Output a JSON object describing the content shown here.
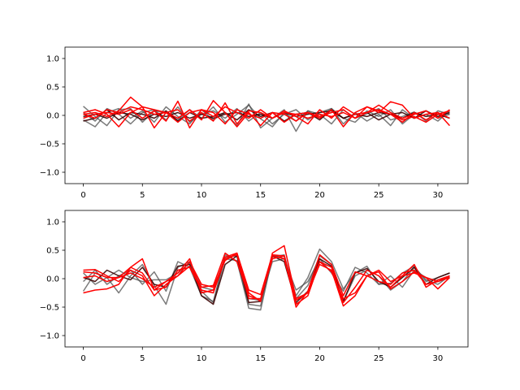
{
  "colors": {
    "gray": "#4d4d4d",
    "red": "#ff0000",
    "dark": "#3a0000",
    "axes": "#000000"
  },
  "chart_data": [
    {
      "type": "line",
      "xlim": [
        -1.55,
        32.55
      ],
      "ylim": [
        -1.2,
        1.2
      ],
      "xticks": [
        0,
        5,
        10,
        15,
        20,
        25,
        30
      ],
      "yticks": [
        -1.0,
        -0.5,
        0.0,
        0.5,
        1.0
      ],
      "ytick_labels": [
        "−1.0",
        "−0.5",
        "0.0",
        "0.5",
        "1.0"
      ],
      "grid": false,
      "series": [
        {
          "color": "gray",
          "values": [
            0.16,
            -0.02,
            -0.18,
            0.1,
            0.12,
            -0.12,
            0.08,
            0.05,
            -0.08,
            0.1,
            -0.05,
            0.15,
            -0.12,
            0.02,
            0.18,
            -0.06,
            -0.2,
            0.05,
            -0.1,
            0.08,
            0.02,
            -0.15,
            0.1,
            -0.05,
            0.03,
            0.12,
            -0.08,
            -0.02,
            0.06,
            -0.1,
            0.08,
            0.02
          ]
        },
        {
          "color": "gray",
          "values": [
            -0.08,
            -0.2,
            0.05,
            0.12,
            -0.05,
            0.08,
            -0.12,
            0.15,
            -0.02,
            -0.15,
            0.1,
            -0.08,
            0.05,
            -0.18,
            0.2,
            -0.22,
            -0.05,
            0.1,
            -0.28,
            0.08,
            -0.05,
            0.12,
            -0.15,
            0.05,
            -0.1,
            0.02,
            -0.18,
            0.1,
            -0.05,
            0.02,
            -0.1,
            0.08
          ]
        },
        {
          "color": "gray",
          "values": [
            0.05,
            -0.1,
            0.12,
            0.02,
            -0.15,
            0.05,
            0.1,
            -0.08,
            0.15,
            -0.12,
            0.02,
            0.08,
            -0.05,
            0.12,
            -0.1,
            0.05,
            -0.15,
            0.02,
            0.1,
            -0.08,
            0.05,
            0.12,
            -0.05,
            -0.12,
            0.08,
            -0.02,
            0.1,
            -0.15,
            0.02,
            0.08,
            -0.05,
            0.02
          ]
        },
        {
          "color": "dark",
          "values": [
            -0.02,
            0.02,
            -0.05,
            0.05,
            0.02,
            -0.08,
            0.02,
            -0.02,
            0.05,
            -0.05,
            0.02,
            -0.05,
            0.02,
            0.05,
            -0.02,
            0.02,
            -0.05,
            0.05,
            -0.02,
            0.02,
            0.05,
            0.08,
            -0.05,
            0.02,
            -0.02,
            0.05,
            0.02,
            -0.05,
            0.05,
            -0.02,
            0.02,
            -0.05
          ]
        },
        {
          "color": "dark",
          "values": [
            -0.1,
            -0.05,
            0.1,
            -0.08,
            0.05,
            0.02,
            -0.05,
            0.08,
            -0.1,
            0.05,
            -0.05,
            -0.02,
            0.05,
            -0.08,
            0.1,
            -0.02,
            0.05,
            -0.1,
            0.02,
            0.05,
            -0.08,
            0.1,
            -0.05,
            0.02,
            0.05,
            -0.08,
            0.02,
            0.05,
            -0.05,
            0.08,
            -0.02,
            0.05
          ]
        },
        {
          "color": "red",
          "values": [
            0.05,
            0.1,
            0.02,
            -0.2,
            0.05,
            0.15,
            0.1,
            0.05,
            -0.05,
            0.1,
            -0.08,
            0.26,
            0.05,
            -0.2,
            0.05,
            -0.18,
            0.05,
            0.02,
            -0.1,
            0.05,
            -0.05,
            0.1,
            -0.2,
            0.05,
            0.15,
            0.05,
            0.24,
            0.18,
            -0.05,
            0.02,
            0.05,
            -0.18
          ]
        },
        {
          "color": "red",
          "values": [
            0.02,
            0.05,
            -0.02,
            0.08,
            0.32,
            0.15,
            -0.22,
            0.05,
            0.1,
            -0.1,
            0.05,
            -0.1,
            0.22,
            -0.15,
            0.08,
            0.05,
            -0.05,
            0.08,
            -0.02,
            -0.15,
            0.1,
            -0.05,
            0.15,
            0.02,
            0.05,
            0.18,
            0.05,
            -0.05,
            0.02,
            0.08,
            -0.05,
            0.1
          ]
        },
        {
          "color": "red",
          "values": [
            -0.05,
            0.02,
            0.05,
            0.02,
            0.1,
            -0.05,
            0.08,
            -0.1,
            0.25,
            -0.22,
            0.1,
            0.05,
            -0.15,
            0.1,
            0.02,
            -0.05,
            0.05,
            -0.12,
            0.02,
            0.05,
            -0.02,
            0.05,
            0.1,
            -0.05,
            0.05,
            0.1,
            0.02,
            -0.12,
            0.05,
            -0.08,
            0.05,
            -0.05
          ]
        },
        {
          "color": "red",
          "values": [
            0.02,
            -0.05,
            0.1,
            0.05,
            0.15,
            0.1,
            0.02,
            0.05,
            -0.12,
            0.05,
            0.1,
            -0.02,
            0.15,
            0.05,
            -0.05,
            0.1,
            -0.05,
            0.05,
            0.02,
            -0.05,
            0.02,
            -0.02,
            0.05,
            -0.05,
            0.15,
            0.08,
            0.02,
            -0.08,
            -0.02,
            -0.12,
            0.02,
            0.08
          ]
        }
      ]
    },
    {
      "type": "line",
      "xlim": [
        -1.55,
        32.55
      ],
      "ylim": [
        -1.2,
        1.2
      ],
      "xticks": [
        0,
        5,
        10,
        15,
        20,
        25,
        30
      ],
      "yticks": [
        -1.0,
        -0.5,
        0.0,
        0.5,
        1.0
      ],
      "ytick_labels": [
        "−1.0",
        "−0.5",
        "0.0",
        "0.5",
        "1.0"
      ],
      "grid": false,
      "series": [
        {
          "color": "gray",
          "values": [
            -0.22,
            0.1,
            0.02,
            -0.25,
            0.05,
            0.25,
            -0.12,
            -0.45,
            0.2,
            0.3,
            -0.22,
            -0.42,
            0.42,
            0.3,
            -0.45,
            -0.48,
            0.42,
            0.35,
            -0.3,
            0.02,
            0.52,
            0.3,
            -0.18,
            0.1,
            0.22,
            -0.1,
            -0.08,
            0.1,
            0.22,
            -0.05,
            0.02,
            0.1
          ]
        },
        {
          "color": "gray",
          "values": [
            -0.05,
            0.15,
            -0.1,
            0.05,
            0.15,
            -0.1,
            0.12,
            -0.22,
            0.3,
            0.2,
            -0.3,
            -0.4,
            0.35,
            0.32,
            -0.52,
            -0.55,
            0.38,
            0.42,
            -0.35,
            -0.12,
            0.4,
            0.25,
            -0.4,
            0.05,
            0.15,
            0.05,
            -0.2,
            -0.05,
            0.2,
            -0.02,
            -0.1,
            0.05
          ]
        },
        {
          "color": "gray",
          "values": [
            0.1,
            -0.1,
            0.02,
            0.15,
            0.02,
            -0.05,
            -0.02,
            -0.02,
            0.1,
            0.28,
            -0.15,
            -0.2,
            0.38,
            0.4,
            -0.35,
            -0.38,
            0.3,
            0.35,
            -0.2,
            -0.05,
            0.35,
            0.1,
            -0.22,
            0.2,
            0.1,
            -0.1,
            0.05,
            -0.15,
            0.15,
            0.02,
            -0.05,
            0.02
          ]
        },
        {
          "color": "dark",
          "values": [
            0.02,
            -0.05,
            0.15,
            0.05,
            -0.02,
            0.2,
            -0.1,
            -0.15,
            0.22,
            0.25,
            -0.3,
            -0.45,
            0.25,
            0.4,
            -0.42,
            -0.4,
            0.4,
            0.3,
            -0.42,
            -0.22,
            0.35,
            0.22,
            -0.4,
            0.1,
            0.18,
            -0.05,
            -0.15,
            0.02,
            0.2,
            -0.1,
            0.02,
            0.1
          ]
        },
        {
          "color": "red",
          "values": [
            0.15,
            0.16,
            0.05,
            -0.05,
            0.15,
            0.05,
            -0.3,
            -0.1,
            0.05,
            0.22,
            -0.15,
            -0.12,
            0.45,
            0.3,
            -0.3,
            -0.38,
            0.4,
            0.35,
            -0.45,
            -0.3,
            0.3,
            0.2,
            -0.42,
            -0.15,
            0.15,
            0.05,
            -0.15,
            0.05,
            0.25,
            -0.15,
            -0.02,
            0.05
          ]
        },
        {
          "color": "red",
          "values": [
            -0.25,
            -0.2,
            -0.18,
            -0.1,
            0.2,
            0.35,
            -0.2,
            -0.05,
            0.1,
            0.35,
            -0.25,
            -0.2,
            0.38,
            0.45,
            -0.25,
            -0.4,
            0.45,
            0.58,
            -0.35,
            -0.25,
            0.3,
            0.12,
            -0.35,
            -0.25,
            0.05,
            0.12,
            -0.18,
            -0.05,
            0.12,
            0.02,
            -0.18,
            0.02
          ]
        },
        {
          "color": "red",
          "values": [
            0.12,
            0.1,
            0.02,
            0.02,
            0.1,
            0.0,
            -0.15,
            -0.05,
            0.05,
            0.3,
            -0.1,
            -0.15,
            0.32,
            0.45,
            -0.2,
            -0.28,
            0.42,
            0.4,
            -0.5,
            -0.22,
            0.42,
            0.25,
            -0.3,
            0.12,
            0.05,
            -0.05,
            -0.1,
            0.1,
            0.15,
            -0.1,
            -0.05,
            0.02
          ]
        },
        {
          "color": "red",
          "values": [
            0.02,
            0.05,
            -0.05,
            0.02,
            0.2,
            0.1,
            -0.2,
            -0.15,
            0.15,
            0.2,
            -0.2,
            -0.25,
            0.35,
            0.42,
            -0.35,
            -0.35,
            0.35,
            0.4,
            -0.38,
            -0.25,
            0.25,
            0.15,
            -0.48,
            -0.3,
            0.05,
            0.15,
            -0.05,
            0.05,
            0.1,
            0.02,
            -0.05,
            0.05
          ]
        }
      ]
    }
  ]
}
